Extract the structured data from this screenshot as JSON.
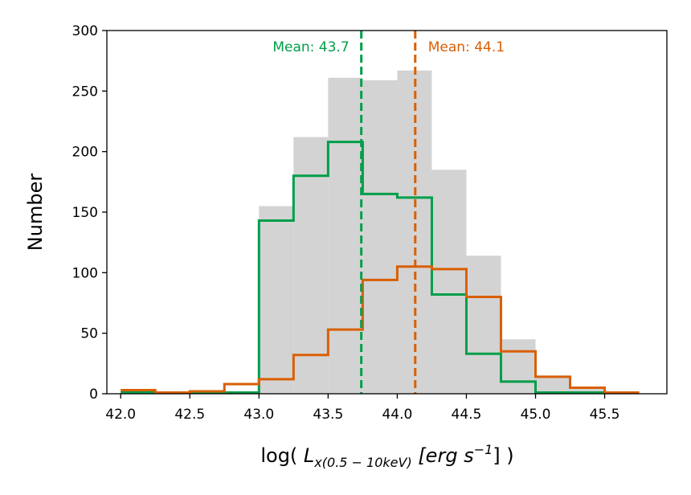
{
  "chart_data": {
    "type": "bar",
    "subtype": "histogram",
    "xlabel": {
      "pre": "log( ",
      "L": "L",
      "sub": "x(0.5 − 10keV)",
      "mid": " [erg s",
      "sup": "−1",
      "post": "] )"
    },
    "ylabel": "Number",
    "xlim": [
      41.9,
      45.95
    ],
    "ylim": [
      0,
      300
    ],
    "xticks": [
      "42.0",
      "42.5",
      "43.0",
      "43.5",
      "44.0",
      "44.5",
      "45.0",
      "45.5"
    ],
    "yticks": [
      "0",
      "50",
      "100",
      "150",
      "200",
      "250",
      "300"
    ],
    "grid": false,
    "bin_edges": [
      42.0,
      42.25,
      42.5,
      42.75,
      43.0,
      43.25,
      43.5,
      43.75,
      44.0,
      44.25,
      44.5,
      44.75,
      45.0,
      45.25,
      45.5,
      45.75
    ],
    "series": [
      {
        "style": "filled",
        "color": "#d3d3d3",
        "values": [
          1,
          1,
          1,
          2,
          155,
          212,
          261,
          259,
          267,
          185,
          114,
          45,
          15,
          5,
          1
        ]
      },
      {
        "style": "step",
        "color": "#009e49",
        "values": [
          1,
          1,
          1,
          1,
          143,
          180,
          208,
          165,
          162,
          82,
          33,
          10,
          1,
          1,
          1
        ]
      },
      {
        "style": "step",
        "color": "#d95f02",
        "values": [
          3,
          1,
          2,
          8,
          12,
          32,
          53,
          94,
          105,
          103,
          80,
          35,
          14,
          5,
          1
        ]
      }
    ],
    "annotations": [
      {
        "text": "Mean: 43.7",
        "x": 43.74,
        "color": "#009e49",
        "anchor": "end"
      },
      {
        "text": "Mean: 44.1",
        "x": 44.13,
        "color": "#d95f02",
        "anchor": "start"
      }
    ]
  }
}
